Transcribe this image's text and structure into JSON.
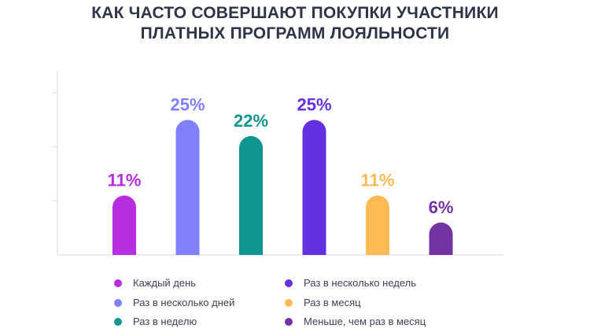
{
  "title_lines": [
    "КАК ЧАСТО СОВЕРШАЮТ ПОКУПКИ УЧАСТНИКИ",
    "ПЛАТНЫХ ПРОГРАММ ЛОЯЛЬНОСТИ"
  ],
  "chart_data": {
    "type": "bar",
    "title": "КАК ЧАСТО СОВЕРШАЮТ ПОКУПКИ УЧАСТНИКИ ПЛАТНЫХ ПРОГРАММ ЛОЯЛЬНОСТИ",
    "categories": [
      "Каждый день",
      "Раз в несколько дней",
      "Раз в неделю",
      "Раз в несколько недель",
      "Раз в месяц",
      "Меньше, чем раз в месяц"
    ],
    "values": [
      11,
      25,
      22,
      25,
      11,
      6
    ],
    "data_labels": [
      "11%",
      "25%",
      "22%",
      "25%",
      "11%",
      "6%"
    ],
    "colors": [
      "#b52ee0",
      "#8080fa",
      "#0f9591",
      "#6530e0",
      "#ffba55",
      "#7433a3"
    ],
    "unit": "%",
    "ylim": [
      0,
      30
    ],
    "xlabel": "",
    "ylabel": "",
    "grid": false,
    "legend_position": "bottom"
  }
}
